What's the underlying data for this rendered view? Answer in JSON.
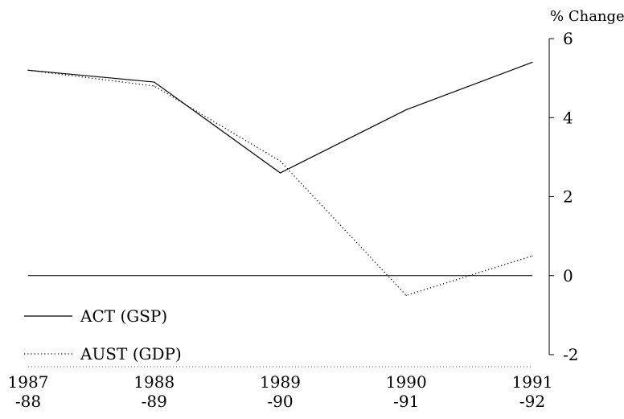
{
  "chart_data": {
    "type": "line",
    "categories": [
      "1987\n-88",
      "1988\n-89",
      "1989\n-90",
      "1990\n-91",
      "1991\n-92"
    ],
    "category_lines": [
      [
        "1987",
        "-88"
      ],
      [
        "1988",
        "-89"
      ],
      [
        "1989",
        "-90"
      ],
      [
        "1990",
        "-91"
      ],
      [
        "1991",
        "-92"
      ]
    ],
    "series": [
      {
        "name": "ACT (GSP)",
        "values": [
          5.2,
          4.9,
          2.6,
          4.2,
          5.4
        ],
        "style": "solid"
      },
      {
        "name": "AUST (GDP)",
        "values": [
          5.2,
          4.8,
          2.9,
          -0.5,
          0.5
        ],
        "style": "dotted"
      }
    ],
    "ylabel": "% Change",
    "ylim": [
      -2,
      6
    ],
    "y_ticks": [
      6,
      4,
      2,
      0,
      -2
    ],
    "y_axis_side": "right",
    "zero_line": true,
    "grid": false,
    "legend_position": "bottom-left",
    "colors": {
      "line": "#000000",
      "background": "#ffffff"
    }
  }
}
